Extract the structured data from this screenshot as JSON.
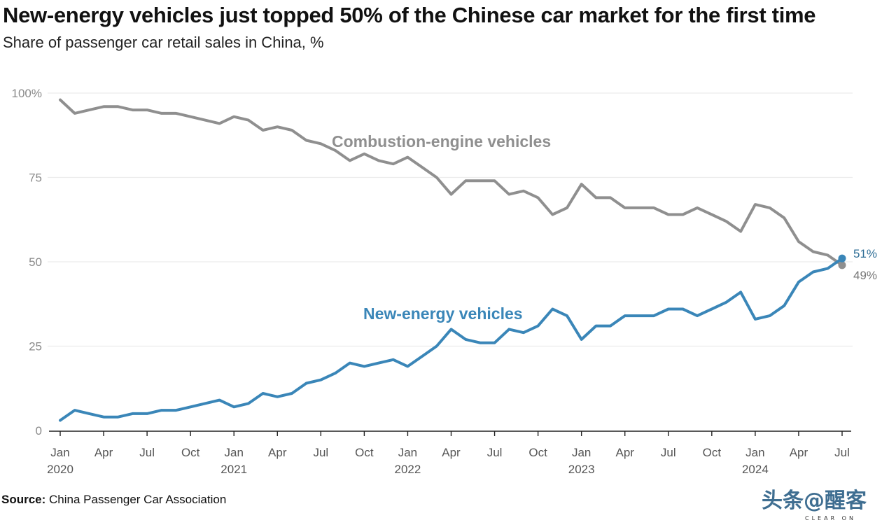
{
  "header": {
    "title": "New-energy vehicles just topped 50% of the Chinese car market for the first time",
    "subtitle": "Share of passenger car retail sales in China, %"
  },
  "footer": {
    "source_label": "Source:",
    "source_text": "China Passenger Car Association",
    "watermark": "头条@醒客",
    "watermark_sub": "CLEAR ON"
  },
  "chart_data": {
    "type": "line",
    "title": "New-energy vehicles just topped 50% of the Chinese car market for the first time",
    "subtitle": "Share of passenger car retail sales in China, %",
    "xlabel": "",
    "ylabel": "",
    "ylim": [
      0,
      100
    ],
    "grid": true,
    "yticks": [
      {
        "value": 0,
        "label": "0"
      },
      {
        "value": 25,
        "label": "25"
      },
      {
        "value": 50,
        "label": "50"
      },
      {
        "value": 75,
        "label": "75"
      },
      {
        "value": 100,
        "label": "100%"
      }
    ],
    "x_start": "Jan 2020",
    "x_end": "Jul 2024",
    "n_points": 55,
    "xticks": [
      {
        "index": 0,
        "label": "Jan",
        "year": "2020"
      },
      {
        "index": 3,
        "label": "Apr",
        "year": ""
      },
      {
        "index": 6,
        "label": "Jul",
        "year": ""
      },
      {
        "index": 9,
        "label": "Oct",
        "year": ""
      },
      {
        "index": 12,
        "label": "Jan",
        "year": "2021"
      },
      {
        "index": 15,
        "label": "Apr",
        "year": ""
      },
      {
        "index": 18,
        "label": "Jul",
        "year": ""
      },
      {
        "index": 21,
        "label": "Oct",
        "year": ""
      },
      {
        "index": 24,
        "label": "Jan",
        "year": "2022"
      },
      {
        "index": 27,
        "label": "Apr",
        "year": ""
      },
      {
        "index": 30,
        "label": "Jul",
        "year": ""
      },
      {
        "index": 33,
        "label": "Oct",
        "year": ""
      },
      {
        "index": 36,
        "label": "Jan",
        "year": "2023"
      },
      {
        "index": 39,
        "label": "Apr",
        "year": ""
      },
      {
        "index": 42,
        "label": "Jul",
        "year": ""
      },
      {
        "index": 45,
        "label": "Oct",
        "year": ""
      },
      {
        "index": 48,
        "label": "Jan",
        "year": "2024"
      },
      {
        "index": 51,
        "label": "Apr",
        "year": ""
      },
      {
        "index": 54,
        "label": "Jul",
        "year": ""
      }
    ],
    "series": [
      {
        "name": "Combustion-engine vehicles",
        "color": "#8f8f8f",
        "end_label": "49%",
        "label_anchor": {
          "index": 28,
          "value": 83
        },
        "values": [
          98,
          94,
          95,
          96,
          96,
          95,
          95,
          94,
          94,
          93,
          92,
          91,
          93,
          92,
          89,
          90,
          89,
          86,
          85,
          83,
          80,
          82,
          80,
          79,
          81,
          78,
          75,
          70,
          74,
          74,
          74,
          70,
          71,
          69,
          64,
          66,
          73,
          69,
          69,
          66,
          66,
          66,
          64,
          64,
          66,
          64,
          62,
          59,
          67,
          66,
          63,
          56,
          53,
          52,
          49
        ]
      },
      {
        "name": "New-energy vehicles",
        "color": "#3a86b8",
        "end_label": "51%",
        "label_anchor": {
          "index": 28,
          "value": 34
        },
        "values": [
          3,
          6,
          5,
          4,
          4,
          5,
          5,
          6,
          6,
          7,
          8,
          9,
          7,
          8,
          11,
          10,
          11,
          14,
          15,
          17,
          20,
          19,
          20,
          21,
          19,
          22,
          25,
          30,
          27,
          26,
          26,
          30,
          29,
          31,
          36,
          34,
          27,
          31,
          31,
          34,
          34,
          34,
          36,
          36,
          34,
          36,
          38,
          41,
          33,
          34,
          37,
          44,
          47,
          48,
          51
        ]
      }
    ]
  }
}
